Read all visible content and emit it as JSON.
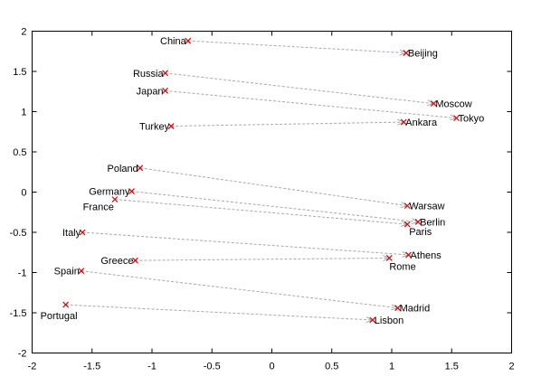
{
  "chart_data": {
    "type": "scatter",
    "xlim": [
      -2,
      2
    ],
    "ylim": [
      -2,
      2
    ],
    "xticks": [
      "-2",
      "-1.5",
      "-1",
      "-0.5",
      "0",
      "0.5",
      "1",
      "1.5",
      "2"
    ],
    "yticks": [
      "2",
      "1.5",
      "1",
      "0.5",
      "0",
      "-0.5",
      "-1",
      "-1.5",
      "-2"
    ],
    "grid": false,
    "legend": "none",
    "marker_color": "#e00000",
    "arrow_color": "#a8a8a8",
    "pairs": [
      {
        "country": "China",
        "country_pt": [
          -0.7,
          1.88
        ],
        "capital": "Beijing",
        "capital_pt": [
          1.12,
          1.73
        ]
      },
      {
        "country": "Russia",
        "country_pt": [
          -0.89,
          1.48
        ],
        "capital": "Moscow",
        "capital_pt": [
          1.35,
          1.1
        ]
      },
      {
        "country": "Japan",
        "country_pt": [
          -0.89,
          1.26
        ],
        "capital": "Tokyo",
        "capital_pt": [
          1.54,
          0.92
        ]
      },
      {
        "country": "Turkey",
        "country_pt": [
          -0.84,
          0.82
        ],
        "capital": "Ankara",
        "capital_pt": [
          1.1,
          0.87
        ]
      },
      {
        "country": "Poland",
        "country_pt": [
          -1.1,
          0.3
        ],
        "capital": "Warsaw",
        "capital_pt": [
          1.13,
          -0.17
        ]
      },
      {
        "country": "Germany",
        "country_pt": [
          -1.17,
          0.01
        ],
        "capital": "Berlin",
        "capital_pt": [
          1.22,
          -0.37
        ]
      },
      {
        "country": "France",
        "country_pt": [
          -1.31,
          -0.09
        ],
        "capital": "Paris",
        "capital_pt": [
          1.13,
          -0.4
        ]
      },
      {
        "country": "Italy",
        "country_pt": [
          -1.58,
          -0.5
        ],
        "capital": "Athens",
        "capital_pt": [
          1.14,
          -0.78
        ]
      },
      {
        "country": "Greece",
        "country_pt": [
          -1.14,
          -0.85
        ],
        "capital": "Rome",
        "capital_pt": [
          0.98,
          -0.82
        ]
      },
      {
        "country": "Spain",
        "country_pt": [
          -1.59,
          -0.98
        ],
        "capital": "Madrid",
        "capital_pt": [
          1.05,
          -1.44
        ]
      },
      {
        "country": "Portugal",
        "country_pt": [
          -1.72,
          -1.4
        ],
        "capital": "Lisbon",
        "capital_pt": [
          0.84,
          -1.59
        ]
      }
    ]
  }
}
